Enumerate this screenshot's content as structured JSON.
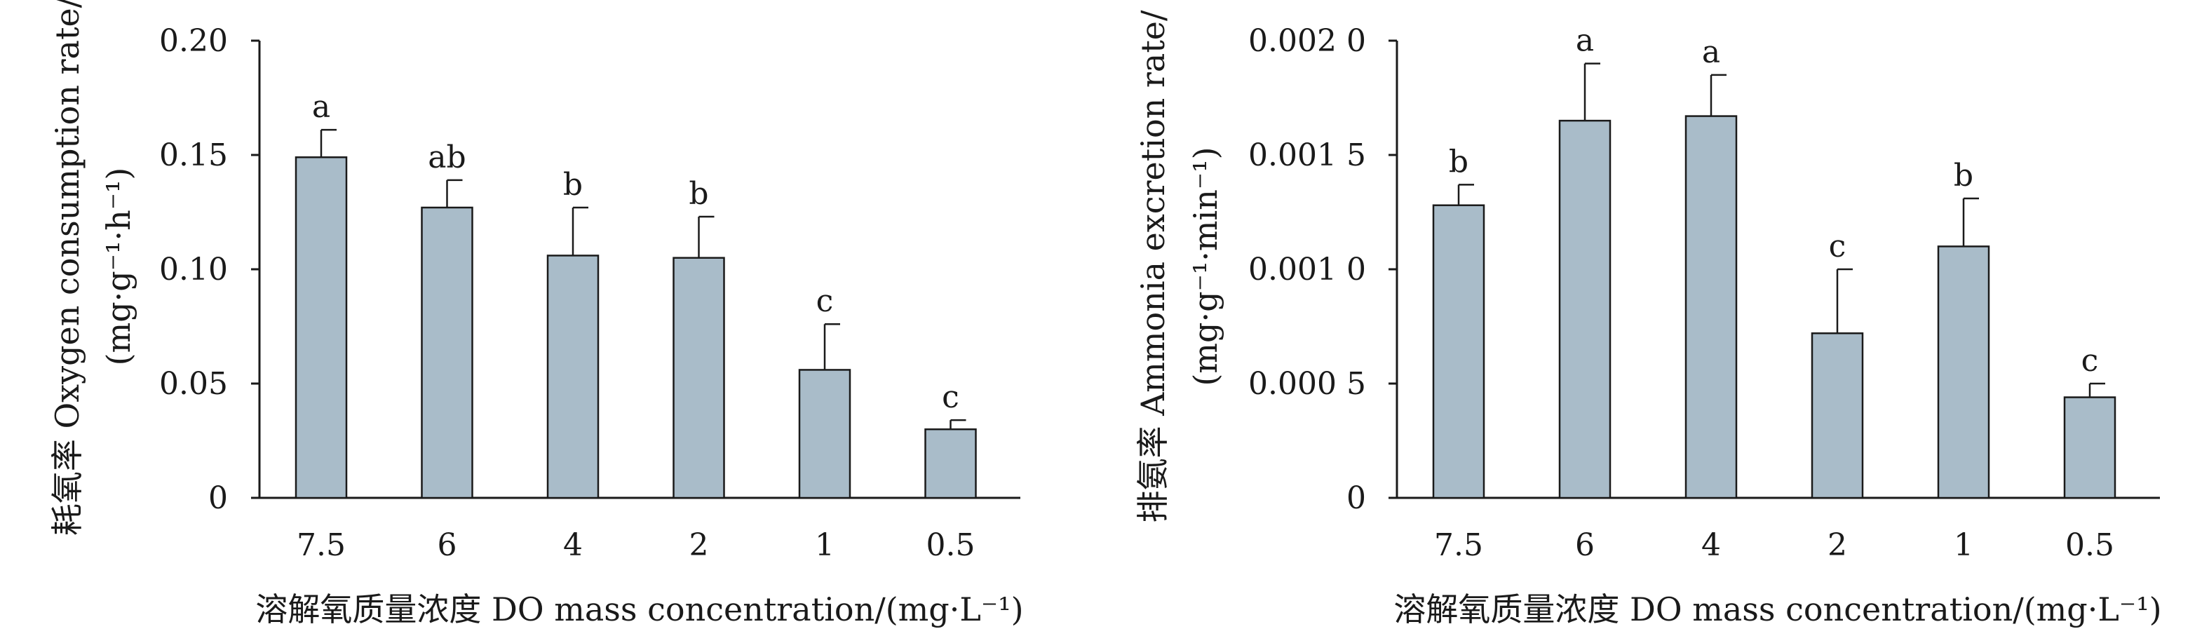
{
  "chart_data": [
    {
      "type": "bar",
      "panel": "left",
      "ylabel_line1": "耗氧率 Oxygen consumption rate/",
      "ylabel_line2": "(mg·g⁻¹·h⁻¹)",
      "xlabel": "溶解氧质量浓度 DO mass concentration/(mg·L⁻¹)",
      "categories": [
        "7.5",
        "6",
        "4",
        "2",
        "1",
        "0.5"
      ],
      "values": [
        0.149,
        0.127,
        0.106,
        0.105,
        0.056,
        0.03
      ],
      "errors": [
        0.012,
        0.012,
        0.021,
        0.018,
        0.02,
        0.004
      ],
      "significance": [
        "a",
        "ab",
        "b",
        "b",
        "c",
        "c"
      ],
      "ylim": [
        0,
        0.2
      ],
      "yticks": [
        0,
        0.05,
        0.1,
        0.15,
        0.2
      ],
      "ytick_labels": [
        "0",
        "0.05",
        "0.10",
        "0.15",
        "0.20"
      ]
    },
    {
      "type": "bar",
      "panel": "right",
      "ylabel_line1": "排氨率 Ammonia excretion rate/",
      "ylabel_line2": "(mg·g⁻¹·min⁻¹)",
      "xlabel": "溶解氧质量浓度 DO mass concentration/(mg·L⁻¹)",
      "categories": [
        "7.5",
        "6",
        "4",
        "2",
        "1",
        "0.5"
      ],
      "values": [
        0.00128,
        0.00165,
        0.00167,
        0.00072,
        0.0011,
        0.00044
      ],
      "errors": [
        9e-05,
        0.00025,
        0.00018,
        0.00028,
        0.00021,
        6e-05
      ],
      "significance": [
        "b",
        "a",
        "a",
        "c",
        "b",
        "c"
      ],
      "ylim": [
        0,
        0.002
      ],
      "yticks": [
        0,
        0.0005,
        0.001,
        0.0015,
        0.002
      ],
      "ytick_labels": [
        "0",
        "0.000 5",
        "0.001 0",
        "0.001 5",
        "0.002 0"
      ]
    }
  ],
  "colors": {
    "bar_fill": "#a9bcc9",
    "axis": "#1a1a1a"
  }
}
